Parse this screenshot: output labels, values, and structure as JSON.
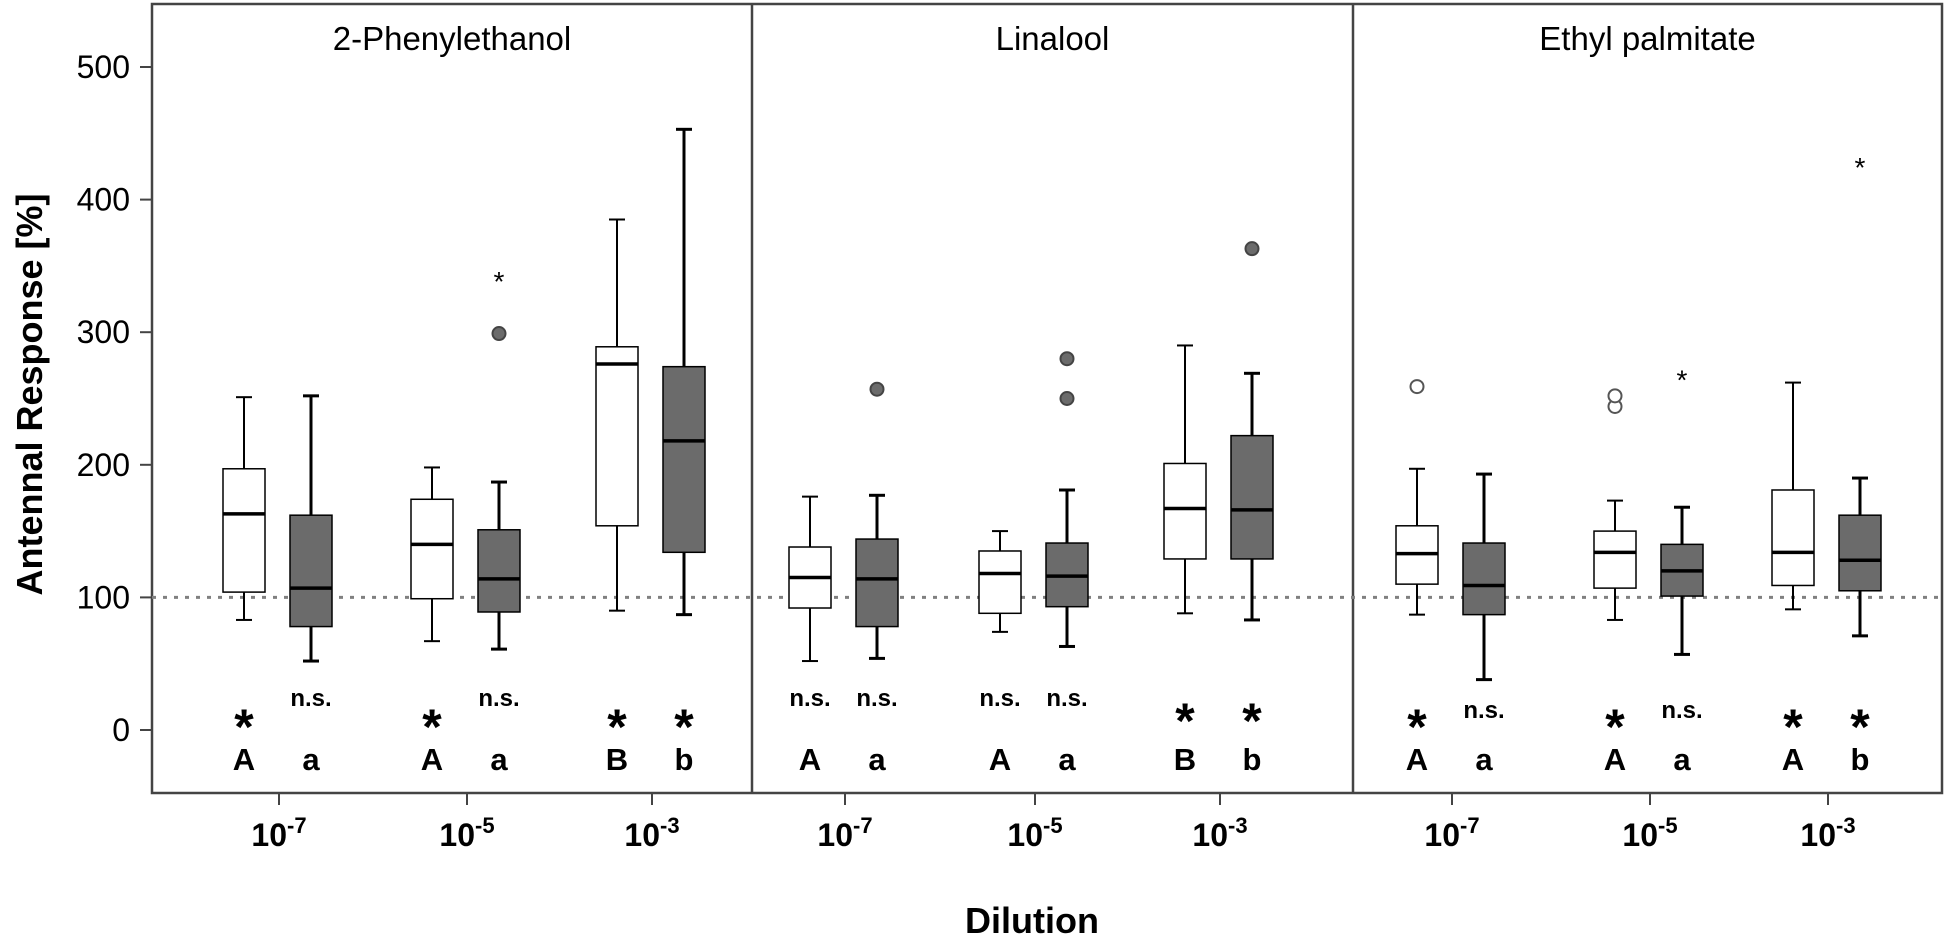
{
  "chart_data": {
    "type": "boxplot",
    "ylabel": "Antennal Response [%]",
    "xlabel": "Dilution",
    "ylim": [
      -45,
      550
    ],
    "yticks": [
      0,
      100,
      200,
      300,
      400,
      500
    ],
    "reference_line": 100,
    "colors": {
      "control": "#ffffff",
      "treatment": "#6b6b6b",
      "frame": "#444444",
      "refline": "#808080"
    },
    "panels": [
      {
        "title": "2-Phenylethanol",
        "groups": [
          {
            "dilution": "10",
            "exponent": "-7",
            "boxes": [
              {
                "fill": "control",
                "whisker_low": 83,
                "q1": 104,
                "median": 163,
                "q3": 197,
                "whisker_high": 251,
                "outliers": [],
                "extremes": [],
                "sig": "*",
                "letter": "A"
              },
              {
                "fill": "treatment",
                "whisker_low": 52,
                "q1": 78,
                "median": 107,
                "q3": 162,
                "whisker_high": 252,
                "outliers": [],
                "extremes": [],
                "sig": "n.s.",
                "letter": "a"
              }
            ]
          },
          {
            "dilution": "10",
            "exponent": "-5",
            "boxes": [
              {
                "fill": "control",
                "whisker_low": 67,
                "q1": 99,
                "median": 140,
                "q3": 174,
                "whisker_high": 198,
                "outliers": [],
                "extremes": [],
                "sig": "*",
                "letter": "A"
              },
              {
                "fill": "treatment",
                "whisker_low": 61,
                "q1": 89,
                "median": 114,
                "q3": 151,
                "whisker_high": 187,
                "outliers": [
                  299
                ],
                "extremes": [
                  340
                ],
                "sig": "n.s.",
                "letter": "a"
              }
            ]
          },
          {
            "dilution": "10",
            "exponent": "-3",
            "boxes": [
              {
                "fill": "control",
                "whisker_low": 90,
                "q1": 154,
                "median": 276,
                "q3": 289,
                "whisker_high": 385,
                "outliers": [],
                "extremes": [],
                "sig": "*",
                "letter": "B"
              },
              {
                "fill": "treatment",
                "whisker_low": 87,
                "q1": 134,
                "median": 218,
                "q3": 274,
                "whisker_high": 453,
                "outliers": [],
                "extremes": [],
                "sig": "*",
                "letter": "b"
              }
            ]
          }
        ]
      },
      {
        "title": "Linalool",
        "groups": [
          {
            "dilution": "10",
            "exponent": "-7",
            "boxes": [
              {
                "fill": "control",
                "whisker_low": 52,
                "q1": 92,
                "median": 115,
                "q3": 138,
                "whisker_high": 176,
                "outliers": [],
                "extremes": [],
                "sig": "n.s.",
                "letter": "A"
              },
              {
                "fill": "treatment",
                "whisker_low": 54,
                "q1": 78,
                "median": 114,
                "q3": 144,
                "whisker_high": 177,
                "outliers": [
                  257
                ],
                "extremes": [],
                "sig": "n.s.",
                "letter": "a"
              }
            ]
          },
          {
            "dilution": "10",
            "exponent": "-5",
            "boxes": [
              {
                "fill": "control",
                "whisker_low": 74,
                "q1": 88,
                "median": 118,
                "q3": 135,
                "whisker_high": 150,
                "outliers": [],
                "extremes": [],
                "sig": "n.s.",
                "letter": "A"
              },
              {
                "fill": "treatment",
                "whisker_low": 63,
                "q1": 93,
                "median": 116,
                "q3": 141,
                "whisker_high": 181,
                "outliers": [
                  250,
                  280
                ],
                "extremes": [],
                "sig": "n.s.",
                "letter": "a"
              }
            ]
          },
          {
            "dilution": "10",
            "exponent": "-3",
            "boxes": [
              {
                "fill": "control",
                "whisker_low": 88,
                "q1": 129,
                "median": 167,
                "q3": 201,
                "whisker_high": 290,
                "outliers": [],
                "extremes": [],
                "sig": "*",
                "letter": "B"
              },
              {
                "fill": "treatment",
                "whisker_low": 83,
                "q1": 129,
                "median": 166,
                "q3": 222,
                "whisker_high": 269,
                "outliers": [
                  363
                ],
                "extremes": [],
                "sig": "*",
                "letter": "b"
              }
            ]
          }
        ]
      },
      {
        "title": "Ethyl palmitate",
        "groups": [
          {
            "dilution": "10",
            "exponent": "-7",
            "boxes": [
              {
                "fill": "control",
                "whisker_low": 87,
                "q1": 110,
                "median": 133,
                "q3": 154,
                "whisker_high": 197,
                "outliers": [
                  259
                ],
                "extremes": [],
                "sig": "*",
                "letter": "A"
              },
              {
                "fill": "treatment",
                "whisker_low": 38,
                "q1": 87,
                "median": 109,
                "q3": 141,
                "whisker_high": 193,
                "outliers": [],
                "extremes": [],
                "sig": "n.s.",
                "letter": "a"
              }
            ]
          },
          {
            "dilution": "10",
            "exponent": "-5",
            "boxes": [
              {
                "fill": "control",
                "whisker_low": 83,
                "q1": 107,
                "median": 134,
                "q3": 150,
                "whisker_high": 173,
                "outliers": [
                  244,
                  252
                ],
                "extremes": [],
                "sig": "*",
                "letter": "A"
              },
              {
                "fill": "treatment",
                "whisker_low": 57,
                "q1": 101,
                "median": 120,
                "q3": 140,
                "whisker_high": 168,
                "outliers": [],
                "extremes": [
                  266
                ],
                "sig": "n.s.",
                "letter": "a"
              }
            ]
          },
          {
            "dilution": "10",
            "exponent": "-3",
            "boxes": [
              {
                "fill": "control",
                "whisker_low": 91,
                "q1": 109,
                "median": 134,
                "q3": 181,
                "whisker_high": 262,
                "outliers": [],
                "extremes": [],
                "sig": "*",
                "letter": "A"
              },
              {
                "fill": "treatment",
                "whisker_low": 71,
                "q1": 105,
                "median": 128,
                "q3": 162,
                "whisker_high": 190,
                "outliers": [],
                "extremes": [
                  426
                ],
                "sig": "*",
                "letter": "b"
              }
            ]
          }
        ]
      }
    ]
  }
}
